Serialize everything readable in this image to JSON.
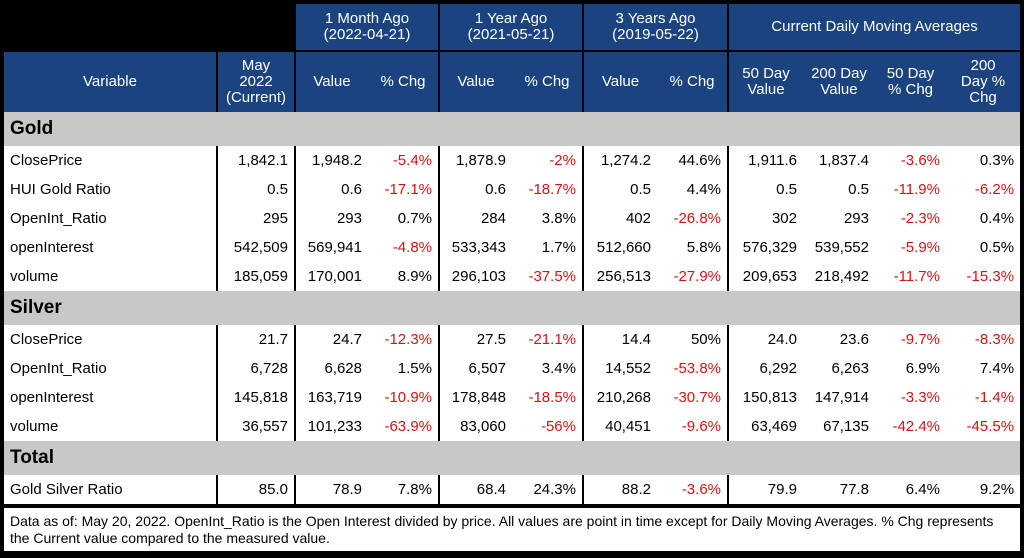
{
  "header": {
    "groups": [
      "1 Month Ago",
      "1 Year Ago",
      "3 Years Ago"
    ],
    "group_dates": [
      "(2022-04-21)",
      "(2021-05-21)",
      "(2019-05-22)"
    ],
    "moving_avg_group": "Current Daily Moving Averages",
    "variable": "Variable",
    "current_col": [
      "May",
      "2022",
      "(Current)"
    ],
    "value": "Value",
    "pct_chg": "% Chg",
    "ma": [
      [
        "50 Day",
        "Value"
      ],
      [
        "200 Day",
        "Value"
      ],
      [
        "50 Day",
        "% Chg"
      ],
      [
        "200",
        "Day %",
        "Chg"
      ]
    ]
  },
  "sections": [
    {
      "name": "Gold",
      "rows": [
        [
          "ClosePrice",
          "1,842.1",
          "1,948.2",
          "-5.4%",
          "1,878.9",
          "-2%",
          "1,274.2",
          "44.6%",
          "1,911.6",
          "1,837.4",
          "-3.6%",
          "0.3%"
        ],
        [
          "HUI Gold Ratio",
          "0.5",
          "0.6",
          "-17.1%",
          "0.6",
          "-18.7%",
          "0.5",
          "4.4%",
          "0.5",
          "0.5",
          "-11.9%",
          "-6.2%"
        ],
        [
          "OpenInt_Ratio",
          "295",
          "293",
          "0.7%",
          "284",
          "3.8%",
          "402",
          "-26.8%",
          "302",
          "293",
          "-2.3%",
          "0.4%"
        ],
        [
          "openInterest",
          "542,509",
          "569,941",
          "-4.8%",
          "533,343",
          "1.7%",
          "512,660",
          "5.8%",
          "576,329",
          "539,552",
          "-5.9%",
          "0.5%"
        ],
        [
          "volume",
          "185,059",
          "170,001",
          "8.9%",
          "296,103",
          "-37.5%",
          "256,513",
          "-27.9%",
          "209,653",
          "218,492",
          "-11.7%",
          "-15.3%"
        ]
      ]
    },
    {
      "name": "Silver",
      "rows": [
        [
          "ClosePrice",
          "21.7",
          "24.7",
          "-12.3%",
          "27.5",
          "-21.1%",
          "14.4",
          "50%",
          "24.0",
          "23.6",
          "-9.7%",
          "-8.3%"
        ],
        [
          "OpenInt_Ratio",
          "6,728",
          "6,628",
          "1.5%",
          "6,507",
          "3.4%",
          "14,552",
          "-53.8%",
          "6,292",
          "6,263",
          "6.9%",
          "7.4%"
        ],
        [
          "openInterest",
          "145,818",
          "163,719",
          "-10.9%",
          "178,848",
          "-18.5%",
          "210,268",
          "-30.7%",
          "150,813",
          "147,914",
          "-3.3%",
          "-1.4%"
        ],
        [
          "volume",
          "36,557",
          "101,233",
          "-63.9%",
          "83,060",
          "-56%",
          "40,451",
          "-9.6%",
          "63,469",
          "67,135",
          "-42.4%",
          "-45.5%"
        ]
      ]
    },
    {
      "name": "Total",
      "rows": [
        [
          "Gold Silver Ratio",
          "85.0",
          "78.9",
          "7.8%",
          "68.4",
          "24.3%",
          "88.2",
          "-3.6%",
          "79.9",
          "77.8",
          "6.4%",
          "9.2%"
        ]
      ]
    }
  ],
  "note": "Data as of: May 20, 2022. OpenInt_Ratio is the Open Interest divided by price. All values are point in time except for Daily Moving Averages. % Chg represents the Current value compared to the measured value.",
  "colors": {
    "header": "#1a4380",
    "section": "#c8c8c8",
    "negative": "#d21414"
  }
}
